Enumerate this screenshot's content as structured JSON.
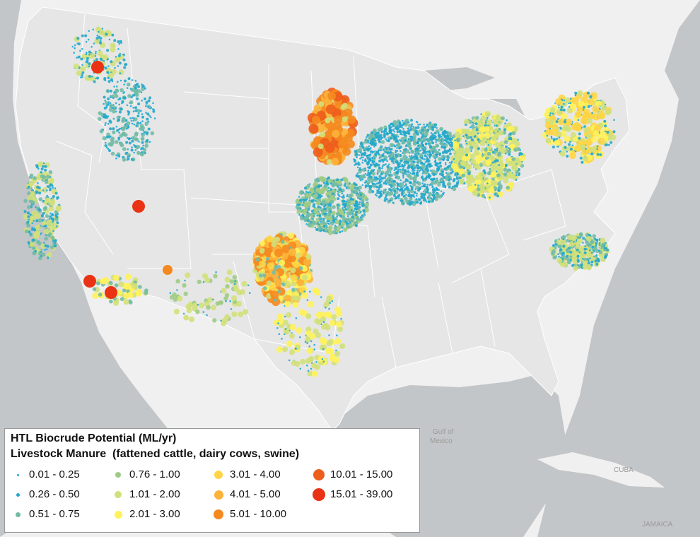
{
  "map": {
    "colors": {
      "land": "#e6e6e6",
      "neighbor_land": "#f0f0f0",
      "water": "#c3c6c8",
      "state_lines": "#ffffff",
      "points": {
        "c1": "#1eaad6",
        "c2": "#22a7c8",
        "c3": "#72bba6",
        "c4": "#9ecb85",
        "c5": "#d2e07a",
        "c6": "#fff25a",
        "c7": "#ffd545",
        "c8": "#fdb23a",
        "c9": "#f5891f",
        "c10": "#ed5d1c",
        "c11": "#ea3215"
      }
    },
    "labels": {
      "gulf": "Gulf of\nMexico",
      "cuba": "CUBA",
      "jamaica": "JAMAICA"
    }
  },
  "legend": {
    "title": "HTL Biocrude Potential (ML/yr)",
    "subtitle": "Livestock Manure  (fattened cattle, dairy cows, swine)",
    "items": [
      {
        "label": "0.01 - 0.25",
        "color": "#1eaad6",
        "size": 3
      },
      {
        "label": "0.26 - 0.50",
        "color": "#22a7c8",
        "size": 5
      },
      {
        "label": "0.51 - 0.75",
        "color": "#72bba6",
        "size": 7
      },
      {
        "label": "0.76 - 1.00",
        "color": "#9ecb85",
        "size": 8
      },
      {
        "label": "1.01 - 2.00",
        "color": "#d2e07a",
        "size": 10
      },
      {
        "label": "2.01 - 3.00",
        "color": "#fff25a",
        "size": 11
      },
      {
        "label": "3.01 - 4.00",
        "color": "#ffd545",
        "size": 12
      },
      {
        "label": "4.01 - 5.00",
        "color": "#fdb23a",
        "size": 13
      },
      {
        "label": "5.01 - 10.00",
        "color": "#f5891f",
        "size": 14
      },
      {
        "label": "10.01 - 15.00",
        "color": "#ed5d1c",
        "size": 16
      },
      {
        "label": "15.01 - 39.00",
        "color": "#ea3215",
        "size": 18
      }
    ]
  }
}
